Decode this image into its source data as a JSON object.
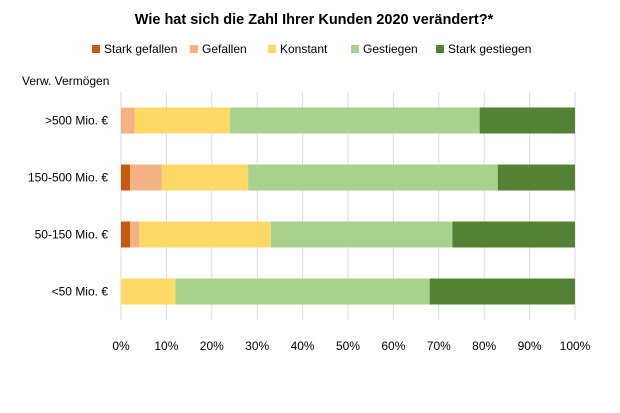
{
  "chart_data": {
    "type": "bar",
    "orientation": "horizontal",
    "stacked": true,
    "title": "Wie hat sich die Zahl Ihrer Kunden 2020 verändert?*",
    "y_axis_title": "Verw. Vermögen",
    "categories": [
      ">500 Mio. €",
      "150-500 Mio. €",
      "50-150 Mio. €",
      "<50 Mio. €"
    ],
    "series": [
      {
        "name": "Stark gefallen",
        "color": "#c55a11",
        "values": [
          0,
          2,
          2,
          0
        ]
      },
      {
        "name": "Gefallen",
        "color": "#f4b183",
        "values": [
          3,
          7,
          2,
          0
        ]
      },
      {
        "name": "Konstant",
        "color": "#ffd966",
        "values": [
          21,
          19,
          29,
          12
        ]
      },
      {
        "name": "Gestiegen",
        "color": "#a9d18e",
        "values": [
          55,
          55,
          40,
          56
        ]
      },
      {
        "name": "Stark gestiegen",
        "color": "#548235",
        "values": [
          21,
          17,
          27,
          32
        ]
      }
    ],
    "x_ticks": [
      "0%",
      "10%",
      "20%",
      "30%",
      "40%",
      "50%",
      "60%",
      "70%",
      "80%",
      "90%",
      "100%"
    ],
    "xlim": [
      0,
      100
    ],
    "grid": "vertical",
    "legend_position": "top"
  }
}
